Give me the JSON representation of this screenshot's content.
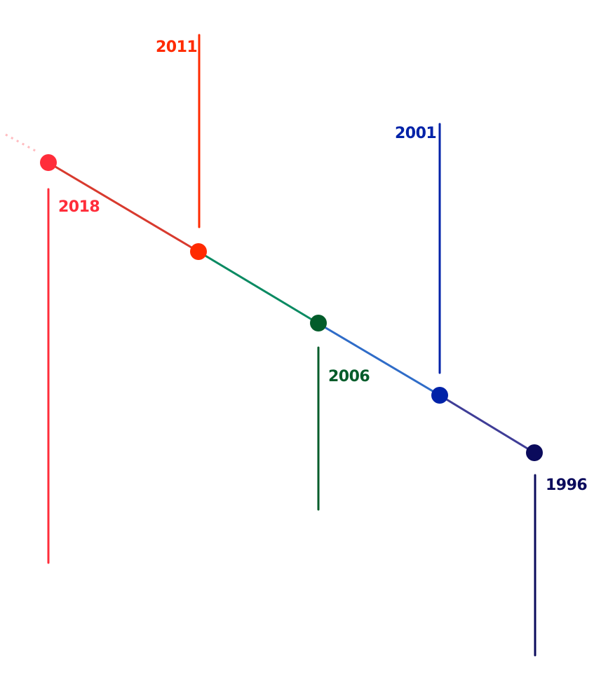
{
  "timeline": {
    "events": [
      {
        "id": "2018",
        "label": "2018",
        "color": "#ff2d3a",
        "line_color": "#ff2d3a",
        "segment_color": "#d83a2e"
      },
      {
        "id": "2011",
        "label": "2011",
        "color": "#ff2a00",
        "line_color": "#ff2a00",
        "segment_color": "#0a8a62"
      },
      {
        "id": "2006",
        "label": "2006",
        "color": "#025c2a",
        "line_color": "#025c2a",
        "segment_color": "#2f6cc8"
      },
      {
        "id": "2001",
        "label": "2001",
        "color": "#0022a8",
        "line_color": "#0022a8",
        "segment_color": "#3f3d97"
      },
      {
        "id": "1996",
        "label": "1996",
        "color": "#0b0b5c",
        "line_color": "#0b0b5c"
      }
    ]
  }
}
